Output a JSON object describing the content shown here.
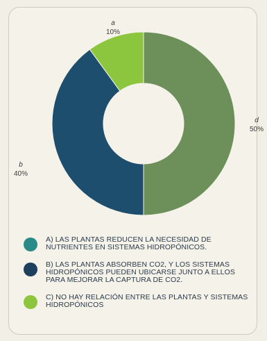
{
  "chart_data": {
    "type": "pie",
    "donut": true,
    "slices": [
      {
        "label": "a",
        "value": 10,
        "value_label": "10%",
        "color": "#8cc63f"
      },
      {
        "label": "d",
        "value": 50,
        "value_label": "50%",
        "color": "#6d8f5a"
      },
      {
        "label": "b",
        "value": 40,
        "value_label": "40%",
        "color": "#1d4e6e"
      }
    ]
  },
  "legend": [
    {
      "text": "A) LAS PLANTAS REDUCEN LA NECESIDAD DE NUTRIENTES EN SISTEMAS HIDROPÓNICOS.",
      "color": "#2a8a8a"
    },
    {
      "text": "B) LAS PLANTAS ABSORBEN CO2, Y LOS SISTEMAS HIDROPÓNICOS PUEDEN UBICARSE JUNTO A ELLOS PARA MEJORAR LA CAPTURA DE CO2.",
      "color": "#1d3f5e"
    },
    {
      "text": "C) NO HAY RELACIÓN ENTRE LAS PLANTAS Y SISTEMAS HIDROPÓNICOS",
      "color": "#8cc63f"
    }
  ]
}
